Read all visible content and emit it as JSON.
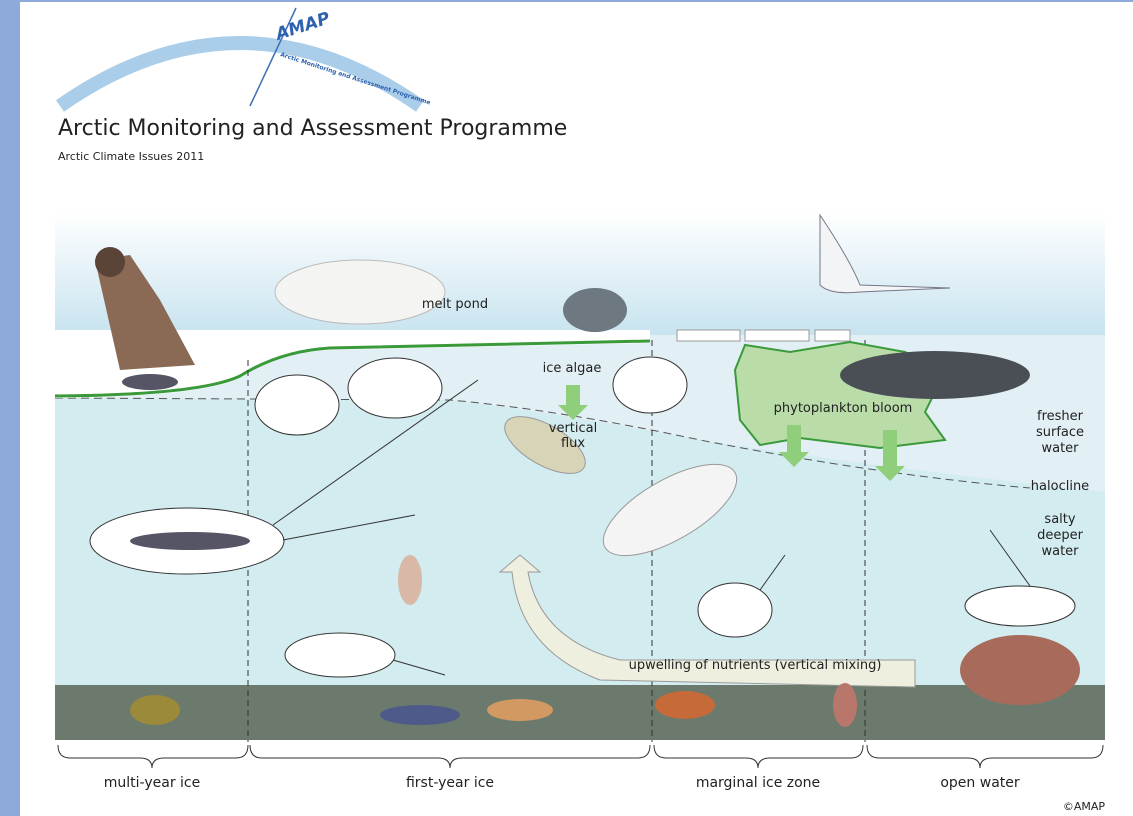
{
  "logo": {
    "mark": "AMAP",
    "subtitle": "Arctic Monitoring and Assessment Programme"
  },
  "header": {
    "title": "Arctic Monitoring and Assessment Programme",
    "subtitle": "Arctic Climate Issues 2011"
  },
  "labels": {
    "melt_pond": "melt pond",
    "ice_algae": "ice algae",
    "vertical_flux": [
      "vertical",
      "flux"
    ],
    "phytoplankton": "phytoplankton bloom",
    "fresher": [
      "fresher",
      "surface",
      "water"
    ],
    "halocline": "halocline",
    "salty": [
      "salty",
      "deeper",
      "water"
    ],
    "upwelling": "upwelling of nutrients (vertical mixing)"
  },
  "zones": [
    "multi-year ice",
    "first-year ice",
    "marginal ice zone",
    "open water"
  ],
  "credit": "©AMAP"
}
